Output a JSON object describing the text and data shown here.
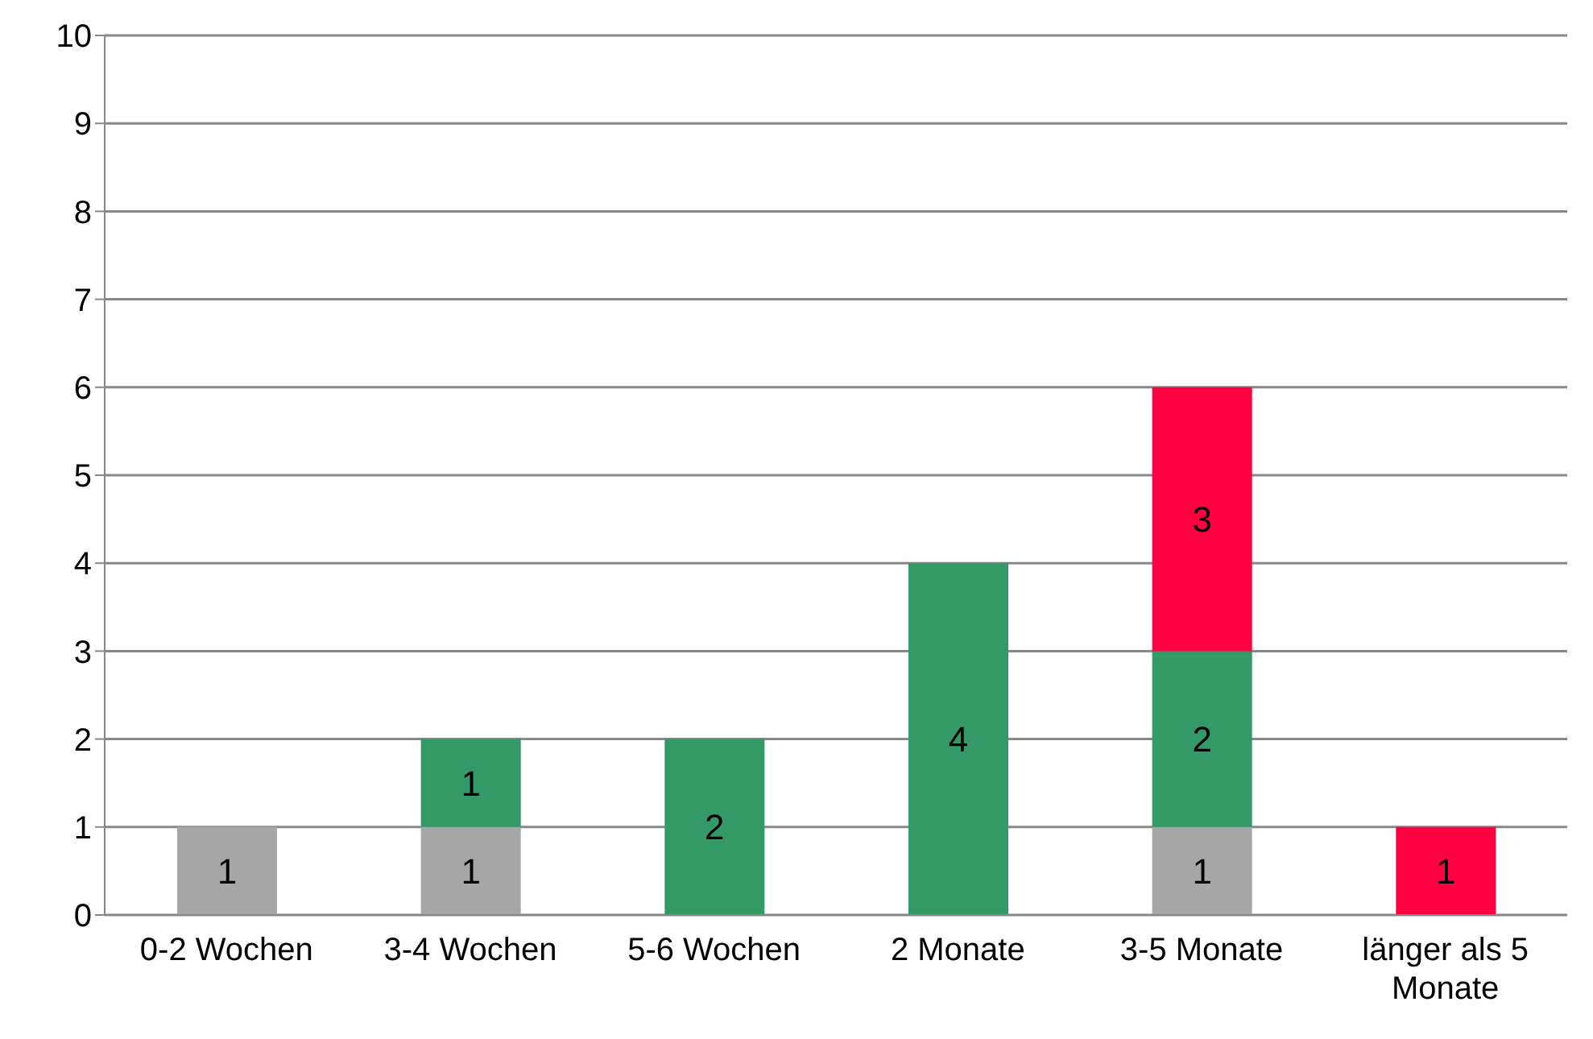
{
  "chart_data": {
    "type": "bar",
    "stacked": true,
    "categories": [
      "0-2 Wochen",
      "3-4 Wochen",
      "5-6 Wochen",
      "2 Monate",
      "3-5 Monate",
      "länger als 5 Monate"
    ],
    "series": [
      {
        "color": "#a6a6a6",
        "values": [
          1,
          1,
          null,
          null,
          1,
          null
        ]
      },
      {
        "color": "#339966",
        "values": [
          null,
          1,
          2,
          4,
          2,
          null
        ]
      },
      {
        "color": "#ff0040",
        "values": [
          null,
          null,
          null,
          null,
          3,
          1
        ]
      }
    ],
    "ylim": [
      0,
      10
    ],
    "yticks": [
      0,
      1,
      2,
      3,
      4,
      5,
      6,
      7,
      8,
      9,
      10
    ],
    "grid": "y",
    "legend": false,
    "data_labels": true
  }
}
